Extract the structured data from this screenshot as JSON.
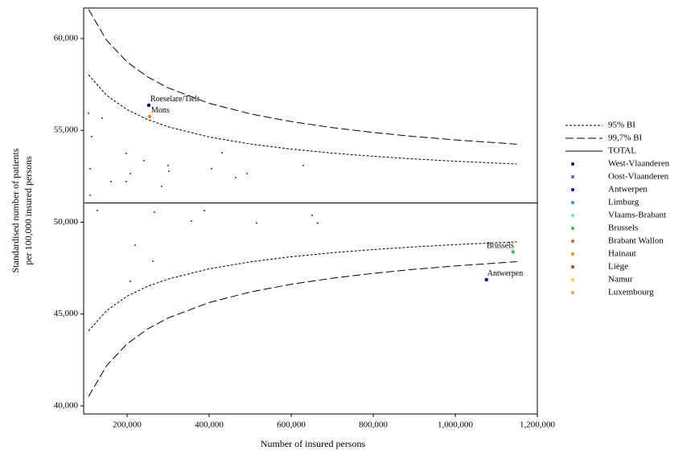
{
  "chart_data": {
    "type": "scatter",
    "xlabel": "Number of insured persons",
    "ylabel": [
      "Standardised number of patients",
      "per 100,000 insured persons"
    ],
    "xlim": [
      94000,
      1200000
    ],
    "ylim": [
      39560,
      61660
    ],
    "xticks": [
      {
        "value": 200000,
        "label": "200,000"
      },
      {
        "value": 400000,
        "label": "400,000"
      },
      {
        "value": 600000,
        "label": "600,000"
      },
      {
        "value": 800000,
        "label": "800,000"
      },
      {
        "value": 1000000,
        "label": "1,000,000"
      },
      {
        "value": 1200000,
        "label": "1,200,000"
      }
    ],
    "yticks": [
      {
        "value": 40000,
        "label": "40,000"
      },
      {
        "value": 45000,
        "label": "45,000"
      },
      {
        "value": 50000,
        "label": "50,000"
      },
      {
        "value": 55000,
        "label": "55,000"
      },
      {
        "value": 60000,
        "label": "60,000"
      }
    ],
    "lines": [
      {
        "name": "95% BI",
        "style": "dotted",
        "color": "#000000",
        "x": [
          106000,
          150000,
          200000,
          250000,
          300000,
          400000,
          500000,
          600000,
          700000,
          800000,
          900000,
          1000000,
          1150000
        ],
        "values": [
          58022,
          56911,
          56126,
          55590,
          55195,
          54639,
          54260,
          53981,
          53763,
          53588,
          53443,
          53320,
          53167
        ],
        "lower": [
          44078,
          45189,
          45974,
          46510,
          46905,
          47461,
          47840,
          48119,
          48337,
          48512,
          48657,
          48780,
          48933
        ]
      },
      {
        "name": "99,7% BI",
        "style": "dashed",
        "color": "#000000",
        "x": [
          106000,
          150000,
          200000,
          250000,
          300000,
          400000,
          500000,
          600000,
          700000,
          800000,
          900000,
          1000000,
          1150000
        ],
        "values": [
          61584,
          59906,
          58720,
          57910,
          57313,
          56473,
          55901,
          55478,
          55149,
          54885,
          54665,
          54480,
          54248
        ],
        "lower": [
          40516,
          42194,
          43380,
          44190,
          44787,
          45627,
          46199,
          46622,
          46951,
          47215,
          47435,
          47620,
          47852
        ]
      },
      {
        "name": "TOTAL",
        "style": "solid",
        "color": "#000000",
        "x": [
          94000,
          1200000
        ],
        "values": [
          51050,
          51050
        ]
      }
    ],
    "series": [
      {
        "name": "West-Vlaanderen",
        "color": "#00008b",
        "x": [
          252800
        ],
        "values": [
          56368
        ],
        "point_labels": [
          "Roeselare/Tielt"
        ]
      },
      {
        "name": "Oost-Vlaanderen",
        "color": "#4169e1",
        "x": [],
        "values": [],
        "point_labels": []
      },
      {
        "name": "Antwerpen",
        "color": "#0000ff",
        "x": [
          1076000
        ],
        "values": [
          46872
        ],
        "point_labels": [
          "Antwerpen"
        ]
      },
      {
        "name": "Limburg",
        "color": "#1e90ff",
        "x": [],
        "values": [],
        "point_labels": []
      },
      {
        "name": "Vlaams-Brabant",
        "color": "#87ceeb",
        "x": [],
        "values": [],
        "point_labels": []
      },
      {
        "name": "Brussels",
        "color": "#32cd32",
        "x": [
          1141000
        ],
        "values": [
          48381
        ],
        "point_labels": [
          "Brussels"
        ]
      },
      {
        "name": "Brabant Wallon",
        "color": "#d2691e",
        "x": [],
        "values": [],
        "point_labels": []
      },
      {
        "name": "Hainaut",
        "color": "#ff8c00",
        "x": [
          254800
        ],
        "values": [
          55755
        ],
        "point_labels": [
          "Mons"
        ]
      },
      {
        "name": "Liège",
        "color": "#a0522d",
        "x": [],
        "values": [],
        "point_labels": []
      },
      {
        "name": "Namur",
        "color": "#ffd700",
        "x": [],
        "values": [],
        "point_labels": []
      },
      {
        "name": "Luxembourg",
        "color": "#f4a020",
        "x": [],
        "values": [],
        "point_labels": []
      }
    ],
    "other_points": {
      "color": "#000000",
      "x": [
        105800,
        113600,
        109700,
        109700,
        139100,
        160700,
        197900,
        197900,
        207700,
        241100,
        299900,
        301800,
        284200,
        405800,
        431300,
        464600,
        492000,
        629300,
        127300,
        266600,
        356700,
        388100,
        515600,
        650900,
        664600,
        219500,
        262600,
        207700
      ],
      "values": [
        55930,
        54661,
        52911,
        51467,
        55668,
        52211,
        53742,
        52211,
        52648,
        53348,
        53086,
        52779,
        51948,
        52911,
        53786,
        52430,
        52648,
        53086,
        50635,
        50548,
        50066,
        50635,
        49956,
        50373,
        49956,
        48754,
        47879,
        46785
      ]
    }
  }
}
